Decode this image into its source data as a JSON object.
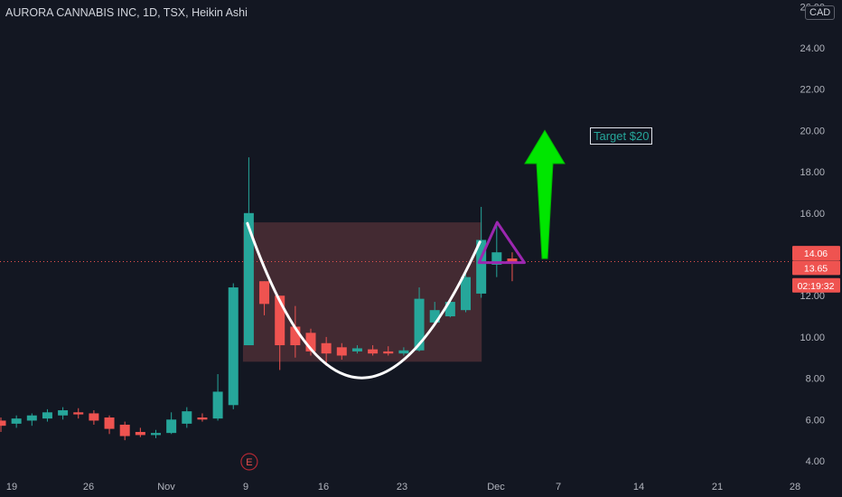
{
  "header": {
    "title": "AURORA CANNABIS INC, 1D, TSX, Heikin Ashi",
    "currency": "CAD"
  },
  "price_tags": {
    "high": "14.06",
    "last": "13.65",
    "countdown": "02:19:32"
  },
  "annotations": {
    "target_label": "Target $20",
    "earnings_marker": "E"
  },
  "colors": {
    "background": "#131722",
    "up": "#26a69a",
    "down": "#ef5350",
    "cup_curve": "#ffffff",
    "triangle": "#9c27b0",
    "arrow": "#00e600",
    "shaded_area": "#6b3a3f"
  },
  "chart_data": {
    "type": "candlestick",
    "style": "Heikin Ashi",
    "interval": "1D",
    "exchange": "TSX",
    "symbol": "AURORA CANNABIS INC",
    "y_ticks": [
      4.0,
      6.0,
      8.0,
      10.0,
      12.0,
      14.0,
      16.0,
      18.0,
      20.0,
      22.0,
      24.0,
      26.0
    ],
    "x_ticks": [
      "19",
      "26",
      "Nov",
      "9",
      "16",
      "23",
      "Dec",
      "7",
      "14",
      "21",
      "28"
    ],
    "ylim": [
      3.5,
      26.2
    ],
    "grid": false,
    "candles": [
      {
        "o": 5.95,
        "h": 6.1,
        "l": 5.4,
        "c": 5.7
      },
      {
        "o": 5.8,
        "h": 6.2,
        "l": 5.6,
        "c": 6.05
      },
      {
        "o": 5.95,
        "h": 6.3,
        "l": 5.7,
        "c": 6.2
      },
      {
        "o": 6.05,
        "h": 6.5,
        "l": 5.9,
        "c": 6.35
      },
      {
        "o": 6.2,
        "h": 6.6,
        "l": 6.0,
        "c": 6.45
      },
      {
        "o": 6.35,
        "h": 6.55,
        "l": 6.05,
        "c": 6.25
      },
      {
        "o": 6.3,
        "h": 6.45,
        "l": 5.75,
        "c": 5.95
      },
      {
        "o": 6.1,
        "h": 6.2,
        "l": 5.3,
        "c": 5.55
      },
      {
        "o": 5.75,
        "h": 5.9,
        "l": 5.0,
        "c": 5.2
      },
      {
        "o": 5.4,
        "h": 5.6,
        "l": 5.15,
        "c": 5.25
      },
      {
        "o": 5.25,
        "h": 5.5,
        "l": 5.1,
        "c": 5.35
      },
      {
        "o": 5.35,
        "h": 6.35,
        "l": 5.3,
        "c": 6.0
      },
      {
        "o": 5.8,
        "h": 6.6,
        "l": 5.6,
        "c": 6.4
      },
      {
        "o": 6.1,
        "h": 6.3,
        "l": 5.9,
        "c": 6.0
      },
      {
        "o": 6.05,
        "h": 8.2,
        "l": 5.95,
        "c": 7.35
      },
      {
        "o": 6.7,
        "h": 12.6,
        "l": 6.5,
        "c": 12.4
      },
      {
        "o": 9.6,
        "h": 18.7,
        "l": 9.6,
        "c": 16.0
      },
      {
        "o": 12.7,
        "h": 12.7,
        "l": 11.05,
        "c": 11.6
      },
      {
        "o": 12.0,
        "h": 12.0,
        "l": 8.4,
        "c": 9.6
      },
      {
        "o": 10.5,
        "h": 11.5,
        "l": 9.0,
        "c": 9.6
      },
      {
        "o": 10.2,
        "h": 10.4,
        "l": 9.1,
        "c": 9.3
      },
      {
        "o": 9.7,
        "h": 10.0,
        "l": 8.6,
        "c": 9.2
      },
      {
        "o": 9.5,
        "h": 9.7,
        "l": 8.9,
        "c": 9.1
      },
      {
        "o": 9.3,
        "h": 9.6,
        "l": 9.2,
        "c": 9.45
      },
      {
        "o": 9.4,
        "h": 9.6,
        "l": 9.1,
        "c": 9.2
      },
      {
        "o": 9.3,
        "h": 9.55,
        "l": 9.1,
        "c": 9.2
      },
      {
        "o": 9.2,
        "h": 9.5,
        "l": 9.1,
        "c": 9.35
      },
      {
        "o": 9.35,
        "h": 12.4,
        "l": 9.3,
        "c": 11.85
      },
      {
        "o": 10.7,
        "h": 11.7,
        "l": 10.6,
        "c": 11.3
      },
      {
        "o": 11.0,
        "h": 11.8,
        "l": 10.95,
        "c": 11.7
      },
      {
        "o": 11.3,
        "h": 13.1,
        "l": 11.2,
        "c": 12.9
      },
      {
        "o": 12.1,
        "h": 16.3,
        "l": 11.9,
        "c": 14.7
      },
      {
        "o": 13.5,
        "h": 15.6,
        "l": 12.9,
        "c": 14.1
      },
      {
        "o": 13.8,
        "h": 14.1,
        "l": 12.7,
        "c": 13.65
      }
    ],
    "current_price": 13.65,
    "day_high_marker": 14.06
  }
}
